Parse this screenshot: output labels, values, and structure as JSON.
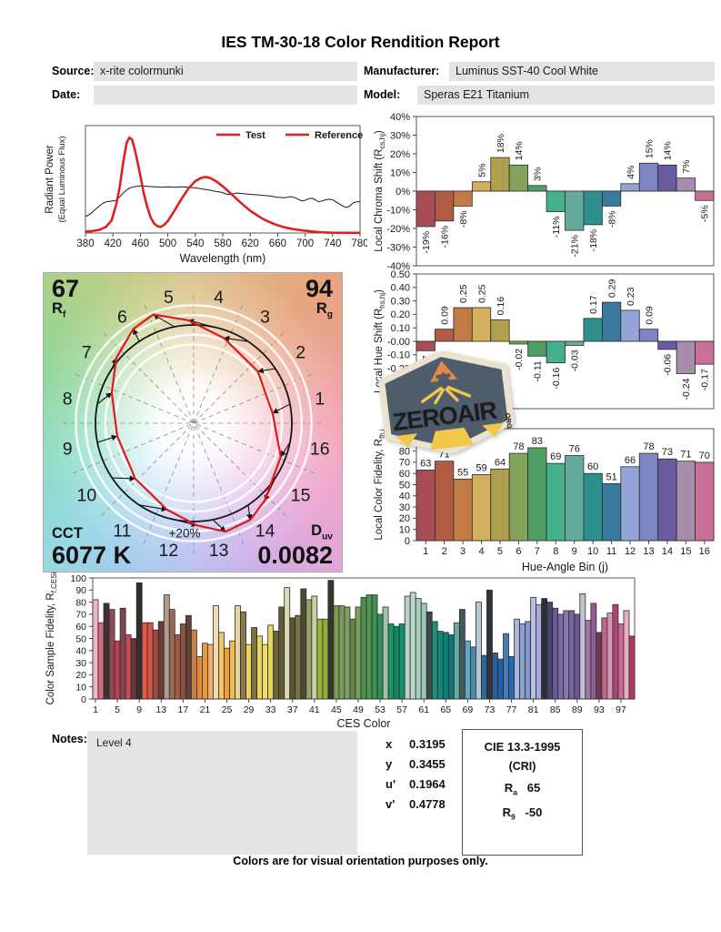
{
  "title": "IES TM-30-18 Color Rendition Report",
  "header": {
    "source_label": "Source:",
    "source_value": "x-rite colormunki",
    "date_label": "Date:",
    "date_value": "",
    "manufacturer_label": "Manufacturer:",
    "manufacturer_value": "Luminus SST-40 Cool White",
    "model_label": "Model:",
    "model_value": "Speras E21 Titanium"
  },
  "notes": {
    "label": "Notes:",
    "text": "Level 4"
  },
  "chromaticity": {
    "rows": [
      {
        "label": "x",
        "value": "0.3195"
      },
      {
        "label": "y",
        "value": "0.3455"
      },
      {
        "label": "u'",
        "value": "0.1964"
      },
      {
        "label": "v'",
        "value": "0.4778"
      }
    ]
  },
  "cie_box": {
    "title": "CIE 13.3-1995",
    "subtitle": "(CRI)",
    "rows": [
      {
        "label": "R",
        "sub": "a",
        "value": "65"
      },
      {
        "label": "R",
        "sub": "9",
        "value": "-50"
      }
    ]
  },
  "watermark": {
    "text": "ZEROAIR",
    "suffix": "ORG"
  },
  "footer": "Colors are for visual orientation purposes only.",
  "bin_colors": [
    "#a84c55",
    "#b25b45",
    "#c27b45",
    "#d4af5e",
    "#afa050",
    "#84a35b",
    "#4f9e66",
    "#45b18c",
    "#66aa9d",
    "#2f8f8f",
    "#39799f",
    "#93a5d6",
    "#7f84c3",
    "#6b5aa0",
    "#a58dab",
    "#cb6f97"
  ],
  "chart_data": [
    {
      "id": "spd",
      "type": "line",
      "xlabel": "Wavelength (nm)",
      "ylabel_lines": [
        "Radiant Power",
        "(Equal Luminous Flux)"
      ],
      "xlim": [
        380,
        780
      ],
      "ylim": [
        0,
        1
      ],
      "x_ticks": [
        380,
        420,
        460,
        500,
        540,
        580,
        620,
        660,
        700,
        740,
        780
      ],
      "legend": {
        "test": "Test",
        "reference": "Reference",
        "marker_color": "#e02020",
        "test_color": "#e02020",
        "reference_color": "#1a1a1a"
      },
      "series": [
        {
          "name": "Test",
          "color": "#e02020",
          "width": 2.6,
          "points": [
            [
              380,
              0.015
            ],
            [
              390,
              0.018
            ],
            [
              400,
              0.03
            ],
            [
              410,
              0.06
            ],
            [
              418,
              0.12
            ],
            [
              425,
              0.28
            ],
            [
              430,
              0.45
            ],
            [
              435,
              0.68
            ],
            [
              440,
              0.87
            ],
            [
              444,
              0.92
            ],
            [
              448,
              0.9
            ],
            [
              452,
              0.8
            ],
            [
              456,
              0.68
            ],
            [
              460,
              0.55
            ],
            [
              465,
              0.38
            ],
            [
              470,
              0.25
            ],
            [
              475,
              0.15
            ],
            [
              480,
              0.09
            ],
            [
              485,
              0.065
            ],
            [
              490,
              0.06
            ],
            [
              495,
              0.08
            ],
            [
              500,
              0.115
            ],
            [
              510,
              0.22
            ],
            [
              520,
              0.33
            ],
            [
              530,
              0.43
            ],
            [
              540,
              0.5
            ],
            [
              548,
              0.53
            ],
            [
              555,
              0.54
            ],
            [
              562,
              0.53
            ],
            [
              570,
              0.5
            ],
            [
              580,
              0.45
            ],
            [
              590,
              0.39
            ],
            [
              600,
              0.33
            ],
            [
              610,
              0.27
            ],
            [
              620,
              0.215
            ],
            [
              630,
              0.17
            ],
            [
              640,
              0.13
            ],
            [
              650,
              0.1
            ],
            [
              660,
              0.075
            ],
            [
              670,
              0.055
            ],
            [
              680,
              0.04
            ],
            [
              690,
              0.03
            ],
            [
              700,
              0.022
            ],
            [
              710,
              0.015
            ],
            [
              720,
              0.009
            ],
            [
              730,
              0.005
            ],
            [
              740,
              0.003
            ],
            [
              760,
              0.002
            ],
            [
              780,
              0.002
            ]
          ]
        },
        {
          "name": "Reference",
          "color": "#1a1a1a",
          "width": 1,
          "points": [
            [
              380,
              0.16
            ],
            [
              385,
              0.175
            ],
            [
              390,
              0.2
            ],
            [
              395,
              0.23
            ],
            [
              400,
              0.26
            ],
            [
              405,
              0.285
            ],
            [
              410,
              0.3
            ],
            [
              415,
              0.305
            ],
            [
              420,
              0.31
            ],
            [
              425,
              0.315
            ],
            [
              430,
              0.35
            ],
            [
              435,
              0.385
            ],
            [
              440,
              0.415
            ],
            [
              445,
              0.435
            ],
            [
              450,
              0.445
            ],
            [
              455,
              0.45
            ],
            [
              460,
              0.455
            ],
            [
              470,
              0.45
            ],
            [
              480,
              0.445
            ],
            [
              490,
              0.44
            ],
            [
              500,
              0.445
            ],
            [
              510,
              0.44
            ],
            [
              520,
              0.445
            ],
            [
              530,
              0.44
            ],
            [
              540,
              0.435
            ],
            [
              550,
              0.425
            ],
            [
              560,
              0.415
            ],
            [
              570,
              0.4
            ],
            [
              580,
              0.39
            ],
            [
              585,
              0.375
            ],
            [
              590,
              0.37
            ],
            [
              600,
              0.385
            ],
            [
              610,
              0.38
            ],
            [
              620,
              0.372
            ],
            [
              630,
              0.368
            ],
            [
              640,
              0.362
            ],
            [
              650,
              0.355
            ],
            [
              660,
              0.345
            ],
            [
              670,
              0.34
            ],
            [
              680,
              0.35
            ],
            [
              685,
              0.34
            ],
            [
              690,
              0.325
            ],
            [
              695,
              0.31
            ],
            [
              700,
              0.315
            ],
            [
              705,
              0.33
            ],
            [
              710,
              0.335
            ],
            [
              715,
              0.32
            ],
            [
              720,
              0.3
            ],
            [
              725,
              0.31
            ],
            [
              730,
              0.32
            ],
            [
              735,
              0.325
            ],
            [
              740,
              0.32
            ],
            [
              745,
              0.3
            ],
            [
              750,
              0.28
            ],
            [
              755,
              0.26
            ],
            [
              760,
              0.245
            ],
            [
              765,
              0.26
            ],
            [
              770,
              0.29
            ],
            [
              775,
              0.3
            ],
            [
              780,
              0.305
            ]
          ]
        }
      ]
    },
    {
      "id": "chroma_shift",
      "type": "bar",
      "ylabel": {
        "pre": "Local Chroma Shift (R",
        "sub": "cs,hj",
        "post": ")"
      },
      "ylim": [
        -40,
        40
      ],
      "ytick_step": 10,
      "tick_fmt": "pct",
      "values": [
        -19,
        -16,
        -8,
        5,
        18,
        14,
        3,
        -11,
        -21,
        -18,
        -8,
        4,
        15,
        14,
        7,
        -5
      ],
      "labels": [
        "-19%",
        "-16%",
        "-8%",
        "5%",
        "18%",
        "14%",
        "3%",
        "-11%",
        "-21%",
        "-18%",
        "-8%",
        "4%",
        "15%",
        "14%",
        "7%",
        "-5%"
      ],
      "label_mode": "rotated"
    },
    {
      "id": "hue_shift",
      "type": "bar",
      "ylabel": {
        "pre": "Local Hue Shift (R",
        "sub": "hs,hj",
        "post": ")"
      },
      "ylim": [
        -0.5,
        0.5
      ],
      "ytick_step": 0.1,
      "tick_fmt": "dec",
      "values": [
        -0.07,
        0.09,
        0.25,
        0.25,
        0.16,
        -0.02,
        -0.11,
        -0.16,
        -0.03,
        0.17,
        0.29,
        0.23,
        0.09,
        -0.06,
        -0.24,
        -0.17
      ],
      "labels": [
        "-0.07",
        "0.09",
        "0.25",
        "0.25",
        "0.16",
        "-0.02",
        "-0.11",
        "-0.16",
        "-0.03",
        "0.17",
        "0.29",
        "0.23",
        "0.09",
        "-0.06",
        "-0.24",
        "-0.17"
      ],
      "label_mode": "rotated"
    },
    {
      "id": "local_fidelity",
      "type": "bar",
      "ylabel": {
        "pre": "Local Color Fidelity, R",
        "sub": "fh,j",
        "post": ""
      },
      "xlabel": "Hue-Angle Bin (j)",
      "ylim": [
        0,
        100
      ],
      "ytick_step": 10,
      "tick_fmt": "int",
      "values": [
        63,
        71,
        55,
        59,
        64,
        78,
        83,
        69,
        76,
        60,
        51,
        66,
        78,
        73,
        71,
        70
      ],
      "labels": [
        "63",
        "71",
        "55",
        "59",
        "64",
        "78",
        "83",
        "69",
        "76",
        "60",
        "51",
        "66",
        "78",
        "73",
        "71",
        "70"
      ],
      "label_mode": "horizontal",
      "xtick_labels": [
        "1",
        "2",
        "3",
        "4",
        "5",
        "6",
        "7",
        "8",
        "9",
        "10",
        "11",
        "12",
        "13",
        "14",
        "15",
        "16"
      ]
    },
    {
      "id": "cvg",
      "type": "vector-graphic",
      "rf": {
        "value": "67",
        "label": "R",
        "sub": "f"
      },
      "rg": {
        "value": "94",
        "label": "R",
        "sub": "g"
      },
      "cct": {
        "label": "CCT",
        "value": "6077 K"
      },
      "duv": {
        "label": "D",
        "sub": "uv",
        "value": "0.0082"
      },
      "plus_label": "+20%",
      "bins": [
        "1",
        "2",
        "3",
        "4",
        "5",
        "6",
        "7",
        "8",
        "9",
        "10",
        "11",
        "12",
        "13",
        "14",
        "15",
        "16"
      ]
    },
    {
      "id": "ces_fidelity",
      "type": "bar",
      "ylabel": {
        "pre": "Color Sample Fidelity, R",
        "sub": "f,CESi",
        "post": ""
      },
      "xlabel": "CES Color",
      "ylim": [
        0,
        100
      ],
      "ytick_step": 10,
      "tick_fmt": "int",
      "label_mode": "none",
      "xtick_step": 4,
      "xtick_labels": [
        "1",
        "5",
        "9",
        "13",
        "17",
        "21",
        "25",
        "29",
        "33",
        "37",
        "41",
        "45",
        "49",
        "53",
        "57",
        "61",
        "65",
        "69",
        "73",
        "77",
        "81",
        "85",
        "89",
        "93",
        "97"
      ],
      "values": [
        82,
        63,
        79,
        74,
        48,
        75,
        53,
        50,
        96,
        63,
        63,
        57,
        64,
        86,
        74,
        53,
        62,
        69,
        57,
        35,
        46,
        45,
        77,
        55,
        42,
        48,
        77,
        72,
        45,
        59,
        52,
        45,
        61,
        56,
        76,
        92,
        67,
        69,
        91,
        82,
        85,
        66,
        66,
        98,
        77,
        77,
        76,
        66,
        76,
        84,
        86,
        86,
        70,
        76,
        62,
        60,
        62,
        85,
        88,
        83,
        79,
        72,
        64,
        56,
        55,
        53,
        63,
        74,
        48,
        43,
        80,
        36,
        90,
        38,
        33,
        54,
        35,
        66,
        62,
        64,
        84,
        78,
        83,
        80,
        75,
        70,
        73,
        73,
        70,
        87,
        65,
        79,
        55,
        67,
        71,
        78,
        62,
        73,
        52
      ],
      "colors": [
        "#f0b4c4",
        "#d96a86",
        "#403137",
        "#924a56",
        "#c13d53",
        "#7c4851",
        "#c74856",
        "#6c333c",
        "#332d2f",
        "#e05848",
        "#d95346",
        "#9c4a3e",
        "#6e3a32",
        "#b49a93",
        "#9a6a58",
        "#a15c42",
        "#8a5440",
        "#5e4336",
        "#c97e4a",
        "#e08a3c",
        "#e89a48",
        "#f0b068",
        "#f2dcb4",
        "#f0c468",
        "#ee9e3a",
        "#eebc50",
        "#e6d4a0",
        "#8a7a4e",
        "#f0d458",
        "#7c7440",
        "#ecd463",
        "#f2dd6a",
        "#ead75c",
        "#6a6538",
        "#5e5c36",
        "#dcd9b4",
        "#585434",
        "#787644",
        "#4c4c30",
        "#9ba06a",
        "#c8cf9e",
        "#9ab23c",
        "#8fae3a",
        "#33382c",
        "#7a9a55",
        "#79995a",
        "#7f9e62",
        "#5e8a48",
        "#7ba05e",
        "#4f8f52",
        "#4e9455",
        "#3f9150",
        "#2e8f5e",
        "#9ec4a8",
        "#19956a",
        "#0f8a60",
        "#12926e",
        "#b5d4c2",
        "#bcd9c8",
        "#a8cebc",
        "#9cc6bc",
        "#3d4a48",
        "#1f8f7c",
        "#148878",
        "#0f8076",
        "#0d7a74",
        "#6aa8a2",
        "#3c5a60",
        "#62a8c2",
        "#4a8aa8",
        "#b2c8d4",
        "#2e6a9e",
        "#30343a",
        "#2d5f96",
        "#1f5ea8",
        "#4a7ab8",
        "#2a69b4",
        "#a8b8dc",
        "#8aa2d0",
        "#8398cc",
        "#b8c0e4",
        "#a8aade",
        "#2e3038",
        "#434670",
        "#6a5a94",
        "#7c68a4",
        "#8878b0",
        "#7a64a0",
        "#6a5690",
        "#c4c0d4",
        "#9a7a9e",
        "#8e5e96",
        "#6e3a52",
        "#c2688e",
        "#d898b4",
        "#a84878",
        "#d06890",
        "#e4aec4",
        "#b43866"
      ]
    }
  ]
}
